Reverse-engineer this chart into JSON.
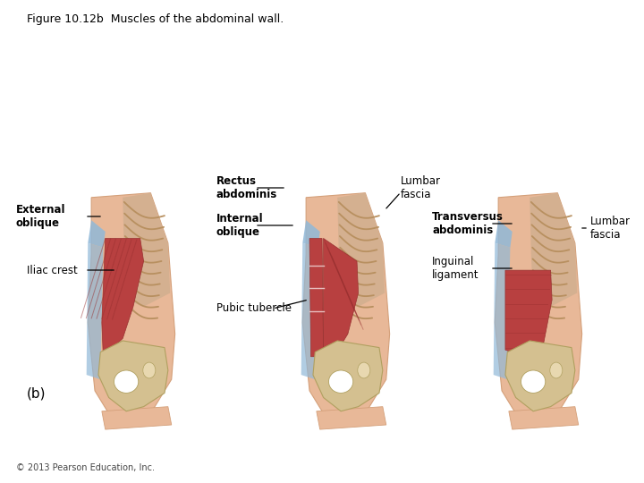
{
  "title": "Figure 10.12b  Muscles of the abdominal wall.",
  "background_color": "#ffffff",
  "figsize": [
    7.2,
    5.4
  ],
  "dpi": 100,
  "skin_color": "#e8b898",
  "skin_dark": "#d4a07a",
  "rib_bg": "#d4b090",
  "rib_line": "#b89060",
  "muscle_red": "#b84040",
  "muscle_dark": "#983030",
  "bone_color": "#d4c090",
  "bone_edge": "#b0a060",
  "fascia_blue": "#90b8d8",
  "fascia_blue2": "#6090b8",
  "footer_text": "© 2013 Pearson Education, Inc.",
  "panel_label": "(b)"
}
